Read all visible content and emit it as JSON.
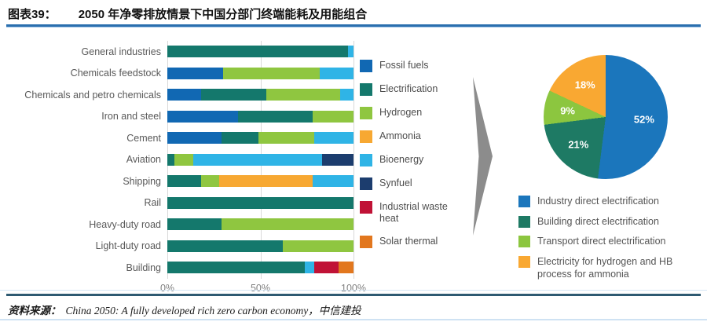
{
  "header": {
    "figure_label": "图表39：",
    "title": "2050 年净零排放情景下中国分部门终端能耗及用能组合"
  },
  "footer": {
    "source_label": "资料来源：",
    "source_text": "China 2050: A fully developed rich zero carbon economy，中信建投"
  },
  "colors": {
    "header_rule": "#2a6fae",
    "footer_rule": "#2e5a72",
    "arrow": "#8c8c8c",
    "grid_line": "#d9d9d9",
    "axis_text": "#7f7f7f",
    "category_text": "#595959",
    "legend_text": "#4d4d4d",
    "pie_label_text": "#ffffff"
  },
  "chart_data": [
    {
      "type": "bar",
      "orientation": "horizontal-stacked",
      "title": "2050 年净零排放情景下中国分部门终端能耗及用能组合",
      "xlabel": "",
      "ylabel": "",
      "xlim": [
        0,
        100
      ],
      "x_ticks": [
        "0%",
        "50%",
        "100%"
      ],
      "grid": "vertical",
      "legend_position": "right",
      "categories": [
        "General industries",
        "Chemicals feedstock",
        "Chemicals and petro chemicals",
        "Iron and steel",
        "Cement",
        "Aviation",
        "Shipping",
        "Rail",
        "Heavy-duty road",
        "Light-duty road",
        "Building"
      ],
      "series": [
        {
          "name": "Fossil fuels",
          "color": "#1168b3",
          "values": [
            0,
            30,
            18,
            38,
            29,
            0,
            0,
            0,
            0,
            0,
            0
          ]
        },
        {
          "name": "Electrification",
          "color": "#14786c",
          "values": [
            97,
            0,
            35,
            40,
            20,
            4,
            18,
            100,
            29,
            62,
            74
          ]
        },
        {
          "name": "Hydrogen",
          "color": "#8fc640",
          "values": [
            0,
            52,
            40,
            22,
            30,
            10,
            10,
            0,
            71,
            38,
            0
          ]
        },
        {
          "name": "Ammonia",
          "color": "#f7a832",
          "values": [
            0,
            0,
            0,
            0,
            0,
            0,
            50,
            0,
            0,
            0,
            0
          ]
        },
        {
          "name": "Bioenergy",
          "color": "#2fb4e6",
          "values": [
            3,
            18,
            7,
            0,
            21,
            69,
            22,
            0,
            0,
            0,
            5
          ]
        },
        {
          "name": "Synfuel",
          "color": "#1c3d6e",
          "values": [
            0,
            0,
            0,
            0,
            0,
            17,
            0,
            0,
            0,
            0,
            0
          ]
        },
        {
          "name": "Industrial waste heat",
          "color": "#c01236",
          "values": [
            0,
            0,
            0,
            0,
            0,
            0,
            0,
            0,
            0,
            0,
            13
          ]
        },
        {
          "name": "Solar thermal",
          "color": "#e2771e",
          "values": [
            0,
            0,
            0,
            0,
            0,
            0,
            0,
            0,
            0,
            0,
            8
          ]
        }
      ]
    },
    {
      "type": "pie",
      "start_angle_deg": 0,
      "direction": "clockwise",
      "legend_position": "bottom",
      "slices": [
        {
          "label": "Industry direct electrification",
          "value": 52,
          "color": "#1b76bc"
        },
        {
          "label": "Building direct electrification",
          "value": 21,
          "color": "#1e7a64"
        },
        {
          "label": "Transport direct electrification",
          "value": 9,
          "color": "#8cc63f"
        },
        {
          "label": "Electricity for hydrogen and HB process for ammonia",
          "value": 18,
          "color": "#f9a832"
        }
      ]
    }
  ]
}
